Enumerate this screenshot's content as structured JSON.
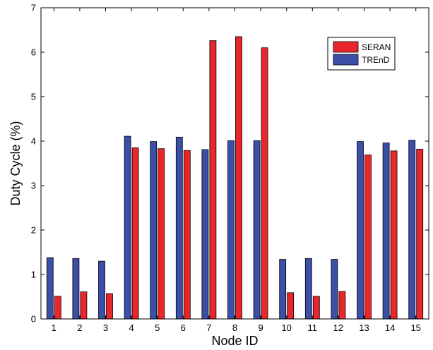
{
  "chart_data": {
    "type": "bar",
    "xlabel": "Node ID",
    "ylabel": "Duty Cycle (%)",
    "ylim": [
      0,
      7
    ],
    "yticks": [
      0,
      1,
      2,
      3,
      4,
      5,
      6,
      7
    ],
    "categories": [
      "1",
      "2",
      "3",
      "4",
      "5",
      "6",
      "7",
      "8",
      "9",
      "10",
      "11",
      "12",
      "13",
      "14",
      "15"
    ],
    "series": [
      {
        "name": "TREnD",
        "color": "#3b4ea8",
        "values": [
          1.38,
          1.36,
          1.3,
          4.11,
          3.99,
          4.09,
          3.81,
          4.01,
          4.01,
          1.34,
          1.36,
          1.34,
          3.99,
          3.96,
          4.02
        ]
      },
      {
        "name": "SERAN",
        "color": "#e8262b",
        "values": [
          0.51,
          0.61,
          0.57,
          3.85,
          3.83,
          3.79,
          6.26,
          6.35,
          6.1,
          0.59,
          0.51,
          0.62,
          3.69,
          3.78,
          3.82
        ]
      }
    ],
    "legend_order": [
      "SERAN",
      "TREnD"
    ],
    "legend_position": "top-right",
    "grid": false
  }
}
